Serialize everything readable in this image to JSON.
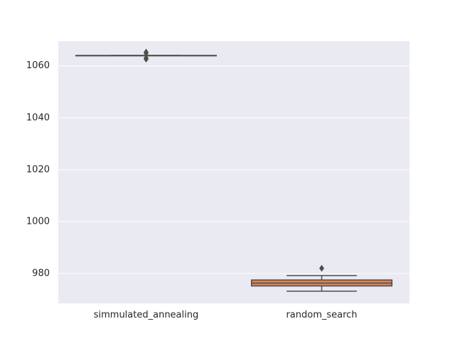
{
  "chart_data": {
    "type": "box",
    "title": "",
    "xlabel": "",
    "ylabel": "",
    "categories": [
      "simmulated_annealing",
      "random_search"
    ],
    "ylim": [
      968.5,
      1069.5
    ],
    "yticks": [
      980,
      1000,
      1020,
      1040,
      1060
    ],
    "ytick_labels": [
      "980",
      "1000",
      "1020",
      "1040",
      "1060"
    ],
    "grid": true,
    "colors": {
      "background": "#eaeaf2",
      "grid": "#ffffff",
      "line": "#4d4d4d",
      "boxes": [
        "#4c72b0",
        "#dd8452"
      ]
    },
    "series": [
      {
        "category": "simmulated_annealing",
        "whisker_low": 1064,
        "q1": 1064,
        "median": 1064,
        "q3": 1064,
        "whisker_high": 1064,
        "outliers": [
          1065.3,
          1064.9,
          1063,
          1062.6
        ]
      },
      {
        "category": "random_search",
        "whisker_low": 973.2,
        "q1": 975.2,
        "median": 976.3,
        "q3": 977.5,
        "whisker_high": 979.2,
        "outliers": [
          982
        ]
      }
    ]
  }
}
